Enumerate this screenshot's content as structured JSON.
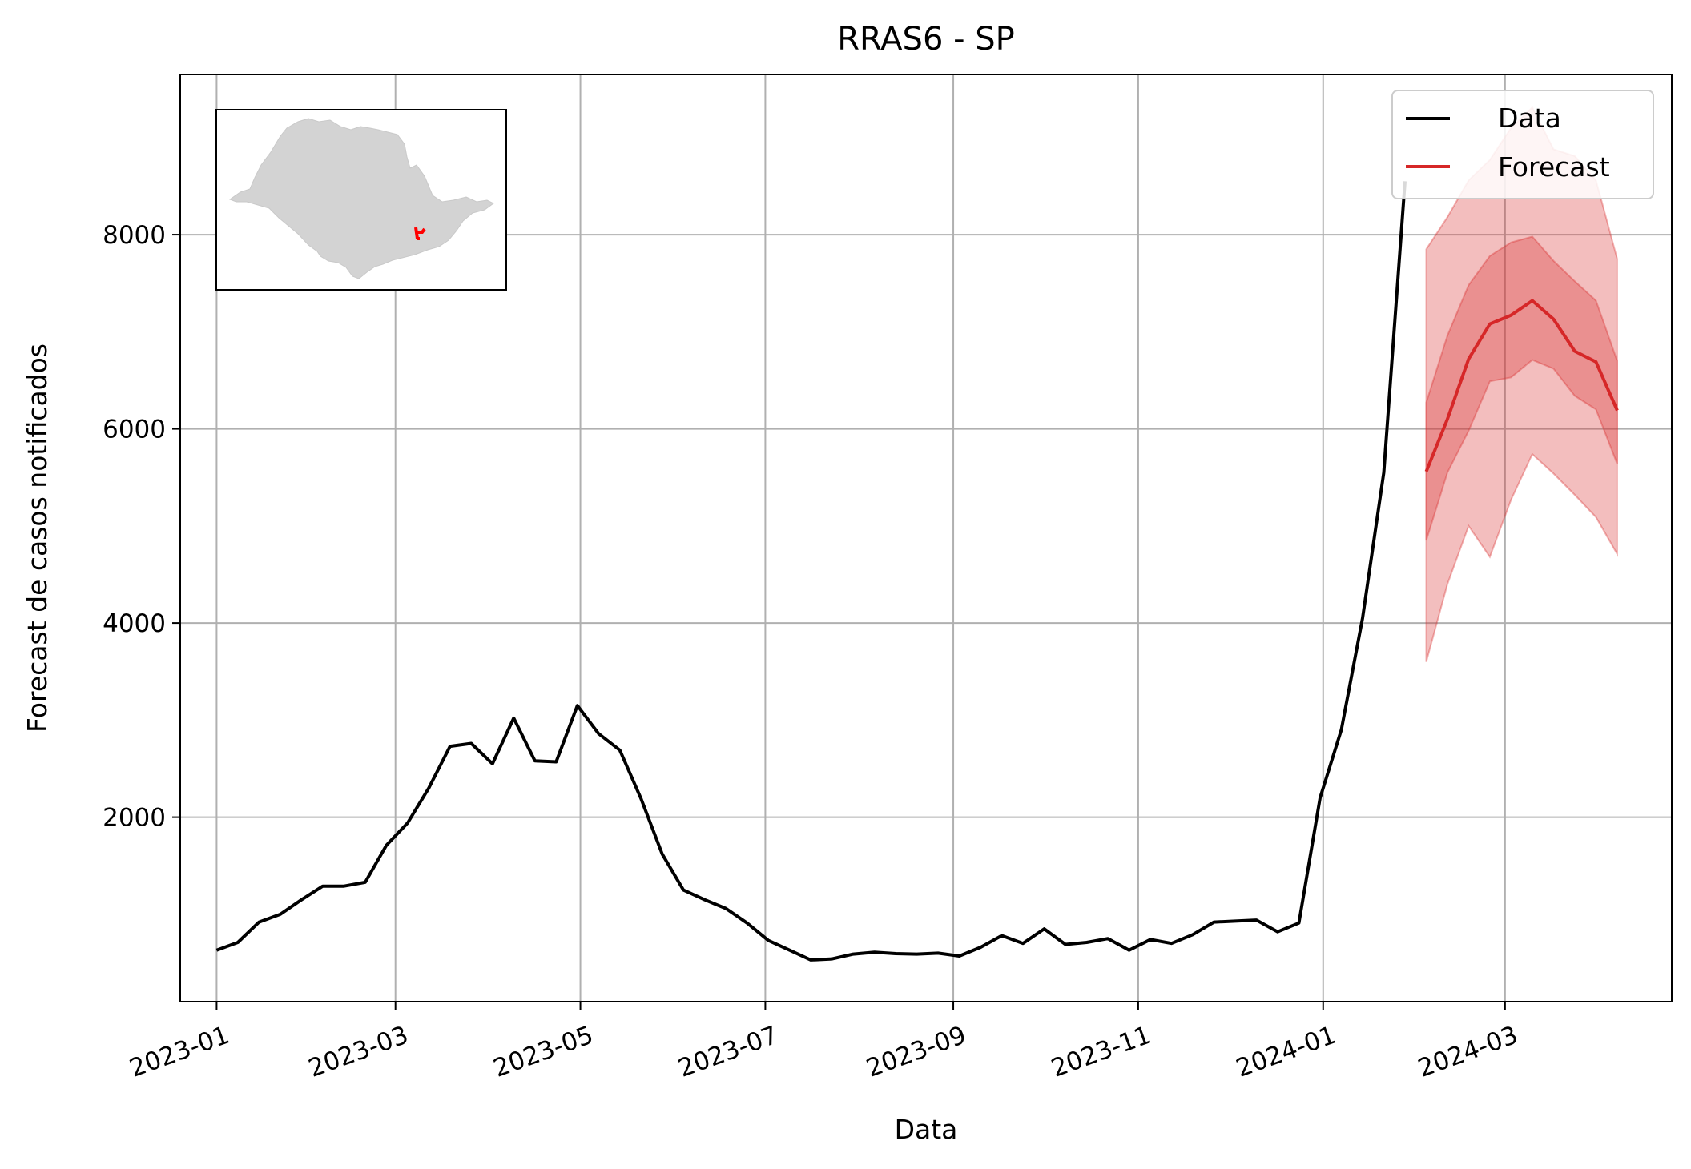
{
  "chart_data": {
    "type": "line",
    "title": "RRAS6 - SP",
    "xlabel": "Data",
    "ylabel": "Forecast de casos notificados",
    "xlim": [
      "2022-12-20",
      "2024-04-25"
    ],
    "ylim": [
      100,
      9650
    ],
    "grid": true,
    "legend_position": "top-right",
    "x_ticks": [
      {
        "date": "2023-01-01",
        "label": "2023-01"
      },
      {
        "date": "2023-03-01",
        "label": "2023-03"
      },
      {
        "date": "2023-05-01",
        "label": "2023-05"
      },
      {
        "date": "2023-07-01",
        "label": "2023-07"
      },
      {
        "date": "2023-09-01",
        "label": "2023-09"
      },
      {
        "date": "2023-11-01",
        "label": "2023-11"
      },
      {
        "date": "2024-01-01",
        "label": "2024-01"
      },
      {
        "date": "2024-03-01",
        "label": "2024-03"
      }
    ],
    "y_ticks": [
      {
        "value": 2000,
        "label": "2000"
      },
      {
        "value": 4000,
        "label": "4000"
      },
      {
        "value": 6000,
        "label": "6000"
      },
      {
        "value": 8000,
        "label": "8000"
      }
    ],
    "series": [
      {
        "name": "Data",
        "color": "#000000",
        "points": [
          [
            "2023-01-01",
            630
          ],
          [
            "2023-01-08",
            710
          ],
          [
            "2023-01-15",
            920
          ],
          [
            "2023-01-22",
            1000
          ],
          [
            "2023-01-29",
            1150
          ],
          [
            "2023-02-05",
            1290
          ],
          [
            "2023-02-12",
            1290
          ],
          [
            "2023-02-19",
            1330
          ],
          [
            "2023-02-26",
            1710
          ],
          [
            "2023-03-05",
            1940
          ],
          [
            "2023-03-12",
            2300
          ],
          [
            "2023-03-19",
            2730
          ],
          [
            "2023-03-26",
            2760
          ],
          [
            "2023-04-02",
            2550
          ],
          [
            "2023-04-09",
            3020
          ],
          [
            "2023-04-16",
            2580
          ],
          [
            "2023-04-23",
            2570
          ],
          [
            "2023-04-30",
            3150
          ],
          [
            "2023-05-07",
            2860
          ],
          [
            "2023-05-14",
            2690
          ],
          [
            "2023-05-21",
            2190
          ],
          [
            "2023-05-28",
            1620
          ],
          [
            "2023-06-04",
            1250
          ],
          [
            "2023-06-11",
            1150
          ],
          [
            "2023-06-18",
            1060
          ],
          [
            "2023-06-25",
            910
          ],
          [
            "2023-07-02",
            730
          ],
          [
            "2023-07-09",
            630
          ],
          [
            "2023-07-16",
            530
          ],
          [
            "2023-07-23",
            540
          ],
          [
            "2023-07-30",
            590
          ],
          [
            "2023-08-06",
            610
          ],
          [
            "2023-08-13",
            595
          ],
          [
            "2023-08-20",
            590
          ],
          [
            "2023-08-27",
            600
          ],
          [
            "2023-09-03",
            570
          ],
          [
            "2023-09-10",
            660
          ],
          [
            "2023-09-17",
            780
          ],
          [
            "2023-09-24",
            700
          ],
          [
            "2023-10-01",
            850
          ],
          [
            "2023-10-08",
            690
          ],
          [
            "2023-10-15",
            710
          ],
          [
            "2023-10-22",
            750
          ],
          [
            "2023-10-29",
            630
          ],
          [
            "2023-11-05",
            740
          ],
          [
            "2023-11-12",
            700
          ],
          [
            "2023-11-19",
            790
          ],
          [
            "2023-11-26",
            920
          ],
          [
            "2023-12-03",
            930
          ],
          [
            "2023-12-10",
            940
          ],
          [
            "2023-12-17",
            820
          ],
          [
            "2023-12-24",
            910
          ],
          [
            "2023-12-31",
            2200
          ],
          [
            "2024-01-07",
            2900
          ],
          [
            "2024-01-14",
            4050
          ],
          [
            "2024-01-21",
            5550
          ],
          [
            "2024-01-28",
            8550
          ]
        ]
      },
      {
        "name": "Forecast",
        "color": "#d62728",
        "points": [
          [
            "2024-02-04",
            5560
          ],
          [
            "2024-02-11",
            6100
          ],
          [
            "2024-02-18",
            6720
          ],
          [
            "2024-02-25",
            7080
          ],
          [
            "2024-03-03",
            7170
          ],
          [
            "2024-03-10",
            7320
          ],
          [
            "2024-03-17",
            7130
          ],
          [
            "2024-03-24",
            6800
          ],
          [
            "2024-03-31",
            6690
          ],
          [
            "2024-04-07",
            6190
          ]
        ],
        "bands": [
          {
            "level": "outer",
            "lower": [
              3600,
              4400,
              5000,
              4680,
              5270,
              5740,
              5540,
              5320,
              5090,
              4710
            ],
            "upper": [
              7850,
              8180,
              8560,
              8770,
              9100,
              9310,
              8880,
              8810,
              8560,
              7750
            ]
          },
          {
            "level": "inner",
            "lower": [
              4850,
              5550,
              5980,
              6490,
              6530,
              6710,
              6620,
              6340,
              6200,
              5640
            ],
            "upper": [
              6270,
              6960,
              7480,
              7780,
              7920,
              7980,
              7730,
              7520,
              7320,
              6700
            ]
          }
        ]
      }
    ]
  },
  "inset_map": {
    "name": "SP",
    "fill_color": "#d3d3d3",
    "highlight_color": "#ff0000"
  }
}
